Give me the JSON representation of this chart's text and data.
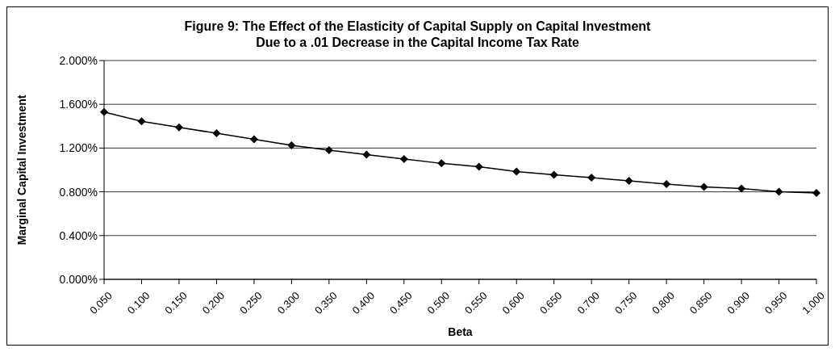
{
  "chart_data": {
    "type": "line",
    "title": "Figure 9: The Effect of the Elasticity of Capital Supply on Capital Investment",
    "subtitle": "Due to a .01 Decrease in the Capital Income Tax Rate",
    "xlabel": "Beta",
    "ylabel": "Marginal Capital Investment",
    "categories": [
      "0.050",
      "0.100",
      "0.150",
      "0.200",
      "0.250",
      "0.300",
      "0.350",
      "0.400",
      "0.450",
      "0.500",
      "0.550",
      "0.600",
      "0.650",
      "0.700",
      "0.750",
      "0.800",
      "0.850",
      "0.900",
      "0.950",
      "1.000"
    ],
    "series": [
      {
        "color": "#000000",
        "values": [
          1.53,
          1.445,
          1.39,
          1.335,
          1.28,
          1.225,
          1.18,
          1.14,
          1.1,
          1.06,
          1.03,
          0.985,
          0.955,
          0.93,
          0.9,
          0.87,
          0.845,
          0.83,
          0.8,
          0.79
        ]
      }
    ],
    "ylim": [
      0,
      2
    ],
    "yticks": [
      {
        "value": 0,
        "label": "0.000%"
      },
      {
        "value": 0.4,
        "label": "0.400%"
      },
      {
        "value": 0.8,
        "label": "0.800%"
      },
      {
        "value": 1.2,
        "label": "1.200%"
      },
      {
        "value": 1.6,
        "label": "1.600%"
      },
      {
        "value": 2,
        "label": "2.000%"
      }
    ],
    "grid": "y",
    "legend": false,
    "marker": "diamond",
    "line_style": "solid"
  }
}
